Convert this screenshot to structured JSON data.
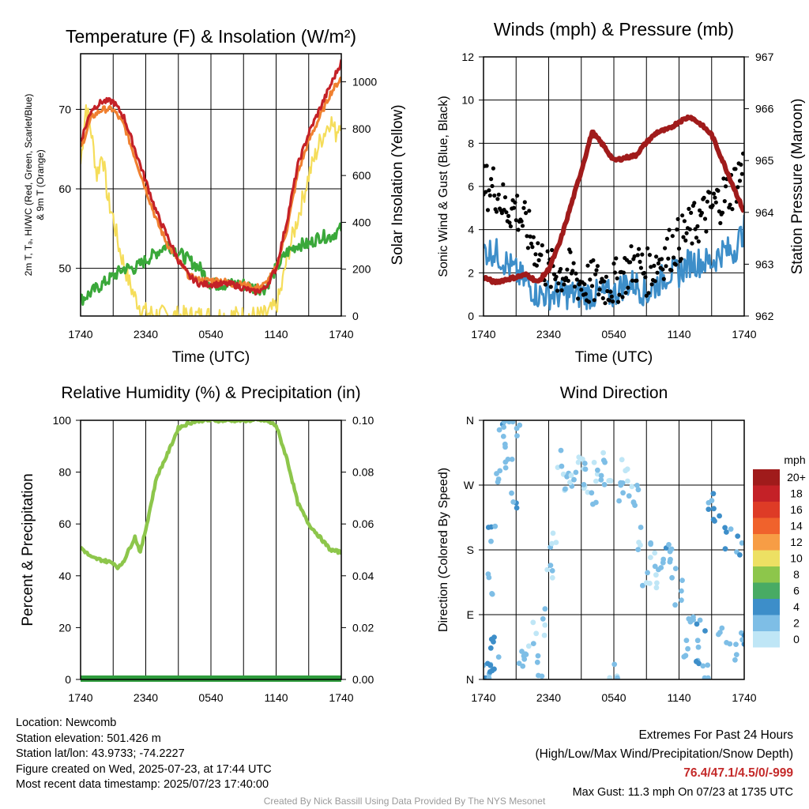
{
  "panels": {
    "temperature": {
      "title": "Temperature (F) & Insolation (W/m²)",
      "ylabel_left_1": "2m T, Tₔ, HI/WC (Red, Green, Scarlet/Blue)",
      "ylabel_left_2": "& 9m T (Orange)",
      "ylabel_right": "Solar Insolation (Yellow)",
      "xlabel": "Time (UTC)"
    },
    "winds": {
      "title": "Winds (mph) & Pressure (mb)",
      "ylabel_left": "Sonic Wind & Gust (Blue, Black)",
      "ylabel_right": "Station Pressure (Maroon)",
      "xlabel": "Time (UTC)"
    },
    "humidity": {
      "title": "Relative Humidity (%) & Precipitation (in)",
      "ylabel_left": "Percent & Precipitation"
    },
    "direction": {
      "title": "Wind Direction",
      "ylabel_left": "Direction (Colored By Speed)",
      "legend_title": "mph",
      "legend_labels": [
        "20+",
        "18",
        "16",
        "14",
        "12",
        "10",
        "8",
        "6",
        "4",
        "2",
        "0"
      ],
      "legend_colors": [
        "#a01b1b",
        "#c42127",
        "#de3b26",
        "#f0622c",
        "#f79d45",
        "#ede063",
        "#8dc64b",
        "#48ab64",
        "#3d8ec9",
        "#7ebee6",
        "#bfe6f6"
      ]
    }
  },
  "info": {
    "location": "Location: Newcomb",
    "elevation": "Station elevation: 501.426 m",
    "latlon": "Station lat/lon: 43.9733; -74.2227",
    "created": "Figure created on Wed, 2025-07-23, at 17:44 UTC",
    "recent": "Most recent data timestamp: 2025/07/23 17:40:00"
  },
  "extremes": {
    "title": "Extremes For Past 24 Hours",
    "subtitle": "(High/Low/Max Wind/Precipitation/Snow Depth)",
    "values": "76.4/47.1/4.5/0/-999",
    "gust": "Max Gust: 11.3 mph On 07/23 at 1735 UTC"
  },
  "credit": "Created By Nick Bassill Using Data Provided By The NYS Mesonet",
  "chart_data": [
    {
      "type": "line",
      "title": "Temperature (F) & Insolation (W/m²)",
      "xlabel": "Time (UTC)",
      "x_ticks": [
        "1740",
        "2340",
        "0540",
        "1140",
        "1740"
      ],
      "y_left_ticks": [
        50,
        60,
        70
      ],
      "y_left_range": [
        44,
        77
      ],
      "y_right_ticks": [
        0,
        200,
        400,
        600,
        800,
        1000
      ],
      "y_right_range": [
        0,
        1120
      ],
      "colors": {
        "temp2m": "#e0302a",
        "temp9m": "#f08030",
        "heatindex": "#c42127",
        "dewpoint": "#3aa83a",
        "solar": "#f5dd5a"
      },
      "series": [
        {
          "name": "Red",
          "axis": "left",
          "x_hours": [
            0,
            1,
            2,
            3,
            4,
            5,
            6,
            7,
            8,
            9,
            10,
            11,
            12,
            13,
            14,
            15,
            16,
            17,
            18,
            19,
            20,
            21,
            22,
            23,
            24
          ],
          "values": [
            66,
            70,
            71,
            71,
            69,
            65,
            61,
            57,
            54,
            51,
            49,
            48,
            48,
            48,
            48,
            47.5,
            47,
            47.5,
            50,
            56,
            63,
            67,
            70,
            73,
            76
          ]
        },
        {
          "name": "Orange",
          "axis": "left",
          "x_hours": [
            0,
            1,
            2,
            3,
            4,
            5,
            6,
            7,
            8,
            9,
            10,
            11,
            12,
            13,
            14,
            15,
            16,
            17,
            18,
            19,
            20,
            21,
            22,
            23,
            24
          ],
          "values": [
            65,
            69,
            70,
            70,
            68,
            64,
            60,
            56,
            53,
            51,
            49,
            48.5,
            48.5,
            48.5,
            48,
            48,
            47.5,
            48,
            50,
            55,
            62,
            66,
            69,
            72,
            74
          ]
        },
        {
          "name": "Green",
          "axis": "left",
          "x_hours": [
            0,
            1,
            2,
            3,
            4,
            5,
            6,
            7,
            8,
            9,
            10,
            11,
            12,
            13,
            14,
            15,
            16,
            17,
            18,
            19,
            20,
            21,
            22,
            23,
            24
          ],
          "values": [
            46,
            47,
            48,
            49,
            50,
            50,
            51,
            52,
            53,
            52,
            51,
            50,
            48,
            48,
            48,
            48,
            47.5,
            47.5,
            50,
            52,
            53,
            53,
            54,
            54,
            55
          ]
        },
        {
          "name": "Yellow",
          "axis": "right",
          "x_hours": [
            0,
            0.5,
            1,
            1.5,
            2,
            2.5,
            3,
            3.5,
            4,
            4.5,
            5,
            5.5,
            6,
            7,
            8,
            9,
            10,
            11,
            12,
            13,
            14,
            15,
            16,
            17,
            18,
            18.5,
            19,
            20,
            21,
            22,
            23,
            23.5,
            24
          ],
          "values": [
            650,
            900,
            780,
            600,
            700,
            500,
            420,
            300,
            220,
            140,
            80,
            40,
            15,
            5,
            2,
            0,
            0,
            0,
            0,
            0,
            0,
            0,
            0,
            2,
            40,
            120,
            250,
            420,
            600,
            740,
            840,
            780,
            850
          ]
        }
      ]
    },
    {
      "type": "line",
      "title": "Winds (mph) & Pressure (mb)",
      "xlabel": "Time (UTC)",
      "x_ticks": [
        "1740",
        "2340",
        "0540",
        "1140",
        "1740"
      ],
      "y_left_ticks": [
        0,
        2,
        4,
        6,
        8,
        10,
        12
      ],
      "y_left_range": [
        0,
        12
      ],
      "y_right_ticks": [
        962,
        963,
        964,
        965,
        966,
        967
      ],
      "y_right_range": [
        962,
        967
      ],
      "colors": {
        "wind": "#3d8ec9",
        "gust": "#000000",
        "pressure": "#a01b1b"
      },
      "series": [
        {
          "name": "Blue",
          "axis": "left",
          "x_hours": [
            0,
            1,
            2,
            3,
            4,
            5,
            6,
            7,
            8,
            9,
            10,
            11,
            12,
            13,
            14,
            15,
            16,
            17,
            18,
            19,
            20,
            21,
            22,
            23,
            24
          ],
          "values": [
            3,
            3,
            2.5,
            2,
            1.5,
            1,
            1,
            1,
            1,
            1,
            1,
            1,
            1,
            1.5,
            1.5,
            1,
            1.5,
            2,
            2,
            2.5,
            2.5,
            2.5,
            3,
            3,
            4
          ]
        },
        {
          "name": "Black",
          "axis": "left",
          "x_hours": [
            0,
            1,
            2,
            3,
            4,
            5,
            6,
            7,
            8,
            9,
            10,
            11,
            12,
            13,
            14,
            15,
            16,
            17,
            18,
            19,
            20,
            21,
            22,
            23,
            24
          ],
          "values": [
            6,
            6,
            5,
            5,
            4,
            3,
            2,
            2,
            2,
            1.5,
            1.5,
            1.5,
            1.5,
            2,
            2.5,
            2,
            2.5,
            3,
            3.5,
            4,
            4.5,
            5,
            5.5,
            6,
            7
          ]
        },
        {
          "name": "Maroon",
          "axis": "right",
          "x_hours": [
            0,
            1,
            2,
            3,
            4,
            5,
            6,
            7,
            8,
            9,
            10,
            11,
            12,
            13,
            14,
            15,
            16,
            17,
            18,
            19,
            20,
            21,
            22,
            23,
            24
          ],
          "values": [
            962.75,
            962.65,
            962.7,
            962.75,
            962.8,
            962.65,
            962.9,
            963.4,
            964.1,
            964.8,
            965.55,
            965.3,
            965.0,
            965.05,
            965.1,
            965.35,
            965.55,
            965.6,
            965.75,
            965.85,
            965.7,
            965.5,
            965.0,
            964.5,
            964.0
          ]
        }
      ]
    },
    {
      "type": "line",
      "title": "Relative Humidity (%) & Precipitation (in)",
      "x_ticks": [
        "1740",
        "2340",
        "0540",
        "1140",
        "1740"
      ],
      "y_left_ticks": [
        0,
        20,
        40,
        60,
        80,
        100
      ],
      "y_left_range": [
        0,
        100
      ],
      "y_right_ticks": [
        "0.00",
        "0.02",
        "0.04",
        "0.06",
        "0.08",
        "0.10"
      ],
      "y_right_range": [
        0,
        0.1
      ],
      "colors": {
        "rh": "#8dc64b",
        "precip": "#2e9c3c"
      },
      "series": [
        {
          "name": "RH",
          "axis": "left",
          "x_hours": [
            0,
            1,
            2,
            3,
            3.5,
            4,
            5,
            5.5,
            6,
            7,
            8,
            9,
            10,
            11,
            12,
            13,
            14,
            15,
            16,
            17,
            18,
            19,
            20,
            21,
            22,
            23,
            24
          ],
          "values": [
            51,
            47,
            46,
            45,
            43,
            46,
            55,
            49,
            58,
            78,
            87,
            97,
            99,
            100,
            100,
            100,
            100,
            100,
            100,
            100,
            98,
            85,
            68,
            60,
            55,
            50,
            49
          ]
        },
        {
          "name": "Precip",
          "axis": "right",
          "x_hours": [
            0,
            24
          ],
          "values": [
            0,
            0
          ]
        }
      ]
    },
    {
      "type": "scatter",
      "title": "Wind Direction",
      "x_ticks": [
        "1740",
        "2340",
        "0540",
        "1140",
        "1740"
      ],
      "y_ticks": [
        "N",
        "E",
        "S",
        "W",
        "N"
      ],
      "y_range_degrees": [
        0,
        360
      ],
      "points": [
        {
          "x": 0.3,
          "dir": 20,
          "speed": 2
        },
        {
          "x": 0.5,
          "dir": 10,
          "speed": 3
        },
        {
          "x": 0.8,
          "dir": 50,
          "speed": 4
        },
        {
          "x": 1.0,
          "dir": 30,
          "speed": 3
        },
        {
          "x": 0.5,
          "dir": 130,
          "speed": 2
        },
        {
          "x": 0.7,
          "dir": 200,
          "speed": 3
        },
        {
          "x": 1.2,
          "dir": 290,
          "speed": 2
        },
        {
          "x": 1.6,
          "dir": 330,
          "speed": 2
        },
        {
          "x": 2.0,
          "dir": 350,
          "speed": 3
        },
        {
          "x": 2.3,
          "dir": 300,
          "speed": 2
        },
        {
          "x": 2.8,
          "dir": 255,
          "speed": 3
        },
        {
          "x": 3.0,
          "dir": 345,
          "speed": 2
        },
        {
          "x": 3.5,
          "dir": 20,
          "speed": 2
        },
        {
          "x": 4.0,
          "dir": 35,
          "speed": 2
        },
        {
          "x": 4.5,
          "dir": 60,
          "speed": 1
        },
        {
          "x": 5.0,
          "dir": 15,
          "speed": 2
        },
        {
          "x": 5.5,
          "dir": 80,
          "speed": 1
        },
        {
          "x": 6.0,
          "dir": 150,
          "speed": 1
        },
        {
          "x": 6.5,
          "dir": 200,
          "speed": 1
        },
        {
          "x": 7.0,
          "dir": 300,
          "speed": 1
        },
        {
          "x": 7.5,
          "dir": 280,
          "speed": 1
        },
        {
          "x": 8.0,
          "dir": 270,
          "speed": 1
        },
        {
          "x": 8.5,
          "dir": 290,
          "speed": 1
        },
        {
          "x": 9.0,
          "dir": 305,
          "speed": 1
        },
        {
          "x": 9.5,
          "dir": 275,
          "speed": 1
        },
        {
          "x": 10.0,
          "dir": 260,
          "speed": 1
        },
        {
          "x": 10.5,
          "dir": 285,
          "speed": 1
        },
        {
          "x": 11.0,
          "dir": 300,
          "speed": 1
        },
        {
          "x": 11.5,
          "dir": 270,
          "speed": 1
        },
        {
          "x": 12.0,
          "dir": 5,
          "speed": 1
        },
        {
          "x": 12.5,
          "dir": 265,
          "speed": 1
        },
        {
          "x": 13.0,
          "dir": 290,
          "speed": 1
        },
        {
          "x": 13.5,
          "dir": 260,
          "speed": 1
        },
        {
          "x": 14.0,
          "dir": 250,
          "speed": 1
        },
        {
          "x": 14.5,
          "dir": 200,
          "speed": 1
        },
        {
          "x": 15.0,
          "dir": 150,
          "speed": 1
        },
        {
          "x": 15.5,
          "dir": 170,
          "speed": 1
        },
        {
          "x": 16.0,
          "dir": 140,
          "speed": 1
        },
        {
          "x": 16.5,
          "dir": 155,
          "speed": 2
        },
        {
          "x": 17.0,
          "dir": 175,
          "speed": 3
        },
        {
          "x": 17.5,
          "dir": 160,
          "speed": 2
        },
        {
          "x": 18.0,
          "dir": 120,
          "speed": 2
        },
        {
          "x": 18.5,
          "dir": 40,
          "speed": 2
        },
        {
          "x": 19.0,
          "dir": 85,
          "speed": 2
        },
        {
          "x": 19.5,
          "dir": 30,
          "speed": 3
        },
        {
          "x": 20.0,
          "dir": 70,
          "speed": 3
        },
        {
          "x": 20.5,
          "dir": 10,
          "speed": 2
        },
        {
          "x": 21.0,
          "dir": 250,
          "speed": 3
        },
        {
          "x": 21.5,
          "dir": 230,
          "speed": 4
        },
        {
          "x": 22.0,
          "dir": 60,
          "speed": 3
        },
        {
          "x": 22.5,
          "dir": 200,
          "speed": 3
        },
        {
          "x": 23.0,
          "dir": 40,
          "speed": 2
        },
        {
          "x": 23.5,
          "dir": 190,
          "speed": 3
        },
        {
          "x": 24.0,
          "dir": 55,
          "speed": 3
        }
      ]
    }
  ]
}
